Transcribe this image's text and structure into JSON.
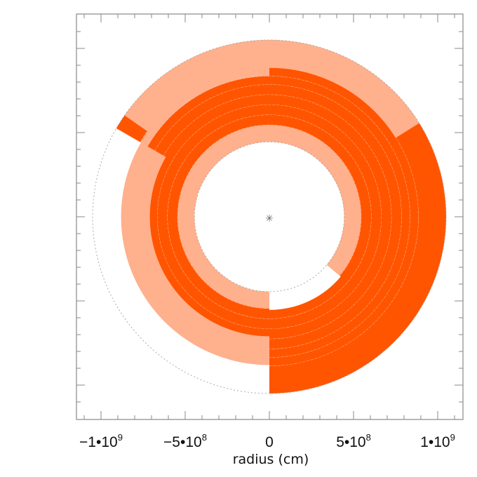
{
  "chart_data": {
    "type": "polar-annulus",
    "xlabel": "radius (cm)",
    "xlim": [
      -1150000000.0,
      1150000000.0
    ],
    "ylim": [
      -1150000000.0,
      1150000000.0
    ],
    "x_ticks": [
      {
        "value": -1000000000.0,
        "mant": "−1•10",
        "exp": "9"
      },
      {
        "value": -500000000.0,
        "mant": "−5•10",
        "exp": "8"
      },
      {
        "value": 0,
        "mant": "0",
        "exp": ""
      },
      {
        "value": 500000000.0,
        "mant": "5•10",
        "exp": "8"
      },
      {
        "value": 1000000000.0,
        "mant": "1•10",
        "exp": "9"
      }
    ],
    "colors": {
      "dark": "#ff5500",
      "light": "#ffb08c",
      "frame": "#888888",
      "dashed": "#aaaaaa"
    },
    "rings": [
      {
        "r_inner": 885000000.0,
        "r_outer": 1050000000.0,
        "start_deg": 90,
        "sweep_deg": 240,
        "light_until_deg": 145,
        "closed": false
      },
      {
        "r_inner": 835000000.0,
        "r_outer": 885000000.0,
        "start_deg": 90,
        "sweep_deg": 240,
        "light_until_deg": 270,
        "closed": false
      },
      {
        "r_inner": 785000000.0,
        "r_outer": 835000000.0,
        "start_deg": 90,
        "sweep_deg": 240,
        "light_until_deg": null,
        "closed": false
      },
      {
        "r_inner": 725000000.0,
        "r_outer": 785000000.0,
        "start_deg": 90,
        "sweep_deg": 240,
        "light_until_deg": null,
        "closed": false
      },
      {
        "r_inner": 665000000.0,
        "r_outer": 725000000.0,
        "start_deg": 90,
        "sweep_deg": 240,
        "light_until_deg": null,
        "closed": false
      },
      {
        "r_inner": 605000000.0,
        "r_outer": 665000000.0,
        "start_deg": 90,
        "sweep_deg": 240,
        "light_until_deg": null,
        "closed": false
      },
      {
        "r_inner": 545000000.0,
        "r_outer": 605000000.0,
        "start_deg": 90,
        "sweep_deg": 240,
        "light_until_deg": null,
        "closed": false
      },
      {
        "r_inner": 445000000.0,
        "r_outer": 545000000.0,
        "start_deg": 90,
        "sweep_deg": 240,
        "light_until_deg": 300,
        "closed": false
      }
    ],
    "dashed_outer_radius": 1050000000.0,
    "dashed_inner_radius": 445000000.0,
    "center_marker": "✳"
  }
}
